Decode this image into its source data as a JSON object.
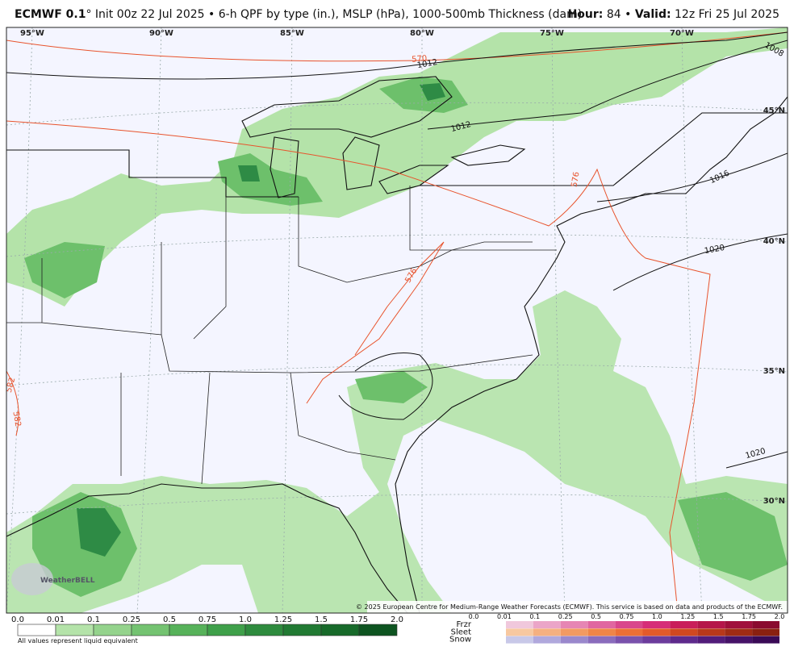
{
  "header": {
    "model": "ECMWF 0.1",
    "description": "° Init 00z 22 Jul 2025 • 6-h QPF by type (in.), MSLP (hPa), 1000-500mb Thickness (dam)",
    "hour_label": "Hour:",
    "hour_value": "84 •",
    "valid_label": "Valid:",
    "valid_value": "12z Fri 25 Jul 2025"
  },
  "map": {
    "longitude_labels": [
      "95°W",
      "90°W",
      "85°W",
      "80°W",
      "75°W",
      "70°W"
    ],
    "latitude_labels": [
      "45°N",
      "40°N",
      "35°N",
      "30°N"
    ],
    "isobar_labels": [
      "1012",
      "1012",
      "1016",
      "1020",
      "1020",
      "1008"
    ],
    "thickness_labels": [
      "570",
      "576",
      "576",
      "582",
      "582"
    ],
    "copyright": "© 2025 European Centre for Medium-Range Weather Forecasts (ECMWF). This service is based on data and products of the ECMWF.",
    "logo": "WeatherBELL"
  },
  "legend": {
    "rain_labels": [
      "0.0",
      "0.01",
      "0.1",
      "0.25",
      "0.5",
      "0.75",
      "1.0",
      "1.25",
      "1.5",
      "1.75",
      "2.0"
    ],
    "note": "All values represent liquid equivalent",
    "types": [
      "Frzr",
      "Sleet",
      "Snow"
    ],
    "type_labels": [
      "0.0",
      "0.01",
      "0.1",
      "0.25",
      "0.5",
      "0.75",
      "1.0",
      "1.25",
      "1.5",
      "1.75",
      "2.0"
    ]
  }
}
